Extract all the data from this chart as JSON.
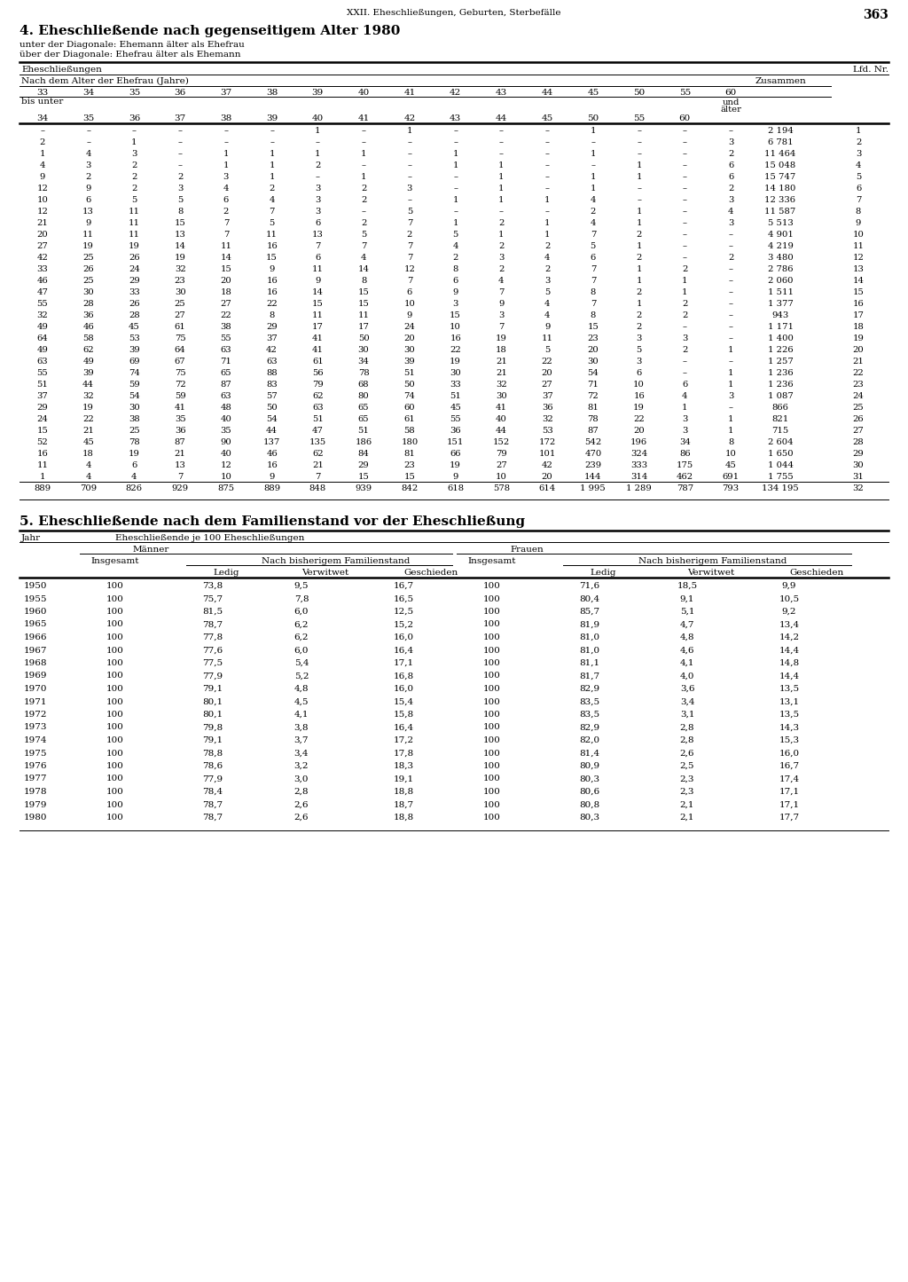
{
  "page_header": "XXII. Eheschließungen, Geburten, Sterbefälle",
  "page_number": "363",
  "section4_title": "4. Eheschließende nach gegenseitigem Alter 1980",
  "section4_sub1": "unter der Diagonale: Ehemann älter als Ehefrau",
  "section4_sub2": "über der Diagonale: Ehefrau älter als Ehemann",
  "table1_col_header1": "Eheschließungen",
  "table1_col_header_right": "Lfd. Nr.",
  "table1_sub_header1": "Nach dem Alter der Ehefrau (Jahre)",
  "table1_sub_header_right": "Zusammen",
  "table1_age_cols_top": [
    "33",
    "34",
    "35",
    "36",
    "37",
    "38",
    "39",
    "40",
    "41",
    "42",
    "43",
    "44",
    "45",
    "50",
    "55",
    "60"
  ],
  "table1_bis_unter": "bis unter",
  "table1_age_cols_bot": [
    "34",
    "35",
    "36",
    "37",
    "38",
    "39",
    "40",
    "41",
    "42",
    "43",
    "44",
    "45",
    "50",
    "55",
    "60"
  ],
  "table1_data": [
    [
      "–",
      "–",
      "–",
      "–",
      "–",
      "–",
      "1",
      "–",
      "1",
      "–",
      "–",
      "–",
      "1",
      "–",
      "–",
      "–",
      "2 194",
      "1"
    ],
    [
      "2",
      "–",
      "1",
      "–",
      "–",
      "–",
      "–",
      "–",
      "–",
      "–",
      "–",
      "–",
      "–",
      "–",
      "–",
      "3",
      "6 781",
      "2"
    ],
    [
      "1",
      "4",
      "3",
      "–",
      "1",
      "1",
      "1",
      "1",
      "–",
      "1",
      "–",
      "–",
      "1",
      "–",
      "–",
      "2",
      "11 464",
      "3"
    ],
    [
      "4",
      "3",
      "2",
      "–",
      "1",
      "1",
      "2",
      "–",
      "–",
      "1",
      "1",
      "–",
      "–",
      "1",
      "–",
      "6",
      "15 048",
      "4"
    ],
    [
      "9",
      "2",
      "2",
      "2",
      "3",
      "1",
      "–",
      "1",
      "–",
      "–",
      "1",
      "–",
      "1",
      "1",
      "–",
      "6",
      "15 747",
      "5"
    ],
    [
      "12",
      "9",
      "2",
      "3",
      "4",
      "2",
      "3",
      "2",
      "3",
      "–",
      "1",
      "–",
      "1",
      "–",
      "–",
      "2",
      "14 180",
      "6"
    ],
    [
      "10",
      "6",
      "5",
      "5",
      "6",
      "4",
      "3",
      "2",
      "–",
      "1",
      "1",
      "1",
      "4",
      "–",
      "–",
      "3",
      "12 336",
      "7"
    ],
    [
      "12",
      "13",
      "11",
      "8",
      "2",
      "7",
      "3",
      "–",
      "5",
      "–",
      "–",
      "–",
      "2",
      "1",
      "–",
      "4",
      "11 587",
      "8"
    ],
    [
      "21",
      "9",
      "11",
      "15",
      "7",
      "5",
      "6",
      "2",
      "7",
      "1",
      "2",
      "1",
      "4",
      "1",
      "–",
      "3",
      "5 513",
      "9"
    ],
    [
      "20",
      "11",
      "11",
      "13",
      "7",
      "11",
      "13",
      "5",
      "2",
      "5",
      "1",
      "1",
      "7",
      "2",
      "–",
      "–",
      "4 901",
      "10"
    ],
    [
      "27",
      "19",
      "19",
      "14",
      "11",
      "16",
      "7",
      "7",
      "7",
      "4",
      "2",
      "2",
      "5",
      "1",
      "–",
      "–",
      "4 219",
      "11"
    ],
    [
      "42",
      "25",
      "26",
      "19",
      "14",
      "15",
      "6",
      "4",
      "7",
      "2",
      "3",
      "4",
      "6",
      "2",
      "–",
      "2",
      "3 480",
      "12"
    ],
    [
      "33",
      "26",
      "24",
      "32",
      "15",
      "9",
      "11",
      "14",
      "12",
      "8",
      "2",
      "2",
      "7",
      "1",
      "2",
      "–",
      "2 786",
      "13"
    ],
    [
      "46",
      "25",
      "29",
      "23",
      "20",
      "16",
      "9",
      "8",
      "7",
      "6",
      "4",
      "3",
      "7",
      "1",
      "1",
      "–",
      "2 060",
      "14"
    ],
    [
      "47",
      "30",
      "33",
      "30",
      "18",
      "16",
      "14",
      "15",
      "6",
      "9",
      "7",
      "5",
      "8",
      "2",
      "1",
      "–",
      "1 511",
      "15"
    ],
    [
      "55",
      "28",
      "26",
      "25",
      "27",
      "22",
      "15",
      "15",
      "10",
      "3",
      "9",
      "4",
      "7",
      "1",
      "2",
      "–",
      "1 377",
      "16"
    ],
    [
      "32",
      "36",
      "28",
      "27",
      "22",
      "8",
      "11",
      "11",
      "9",
      "15",
      "3",
      "4",
      "8",
      "2",
      "2",
      "–",
      "943",
      "17"
    ],
    [
      "49",
      "46",
      "45",
      "61",
      "38",
      "29",
      "17",
      "17",
      "24",
      "10",
      "7",
      "9",
      "15",
      "2",
      "–",
      "–",
      "1 171",
      "18"
    ],
    [
      "64",
      "58",
      "53",
      "75",
      "55",
      "37",
      "41",
      "50",
      "20",
      "16",
      "19",
      "11",
      "23",
      "3",
      "3",
      "–",
      "1 400",
      "19"
    ],
    [
      "49",
      "62",
      "39",
      "64",
      "63",
      "42",
      "41",
      "30",
      "30",
      "22",
      "18",
      "5",
      "20",
      "5",
      "2",
      "1",
      "1 226",
      "20"
    ],
    [
      "63",
      "49",
      "69",
      "67",
      "71",
      "63",
      "61",
      "34",
      "39",
      "19",
      "21",
      "22",
      "30",
      "3",
      "–",
      "–",
      "1 257",
      "21"
    ],
    [
      "55",
      "39",
      "74",
      "75",
      "65",
      "88",
      "56",
      "78",
      "51",
      "30",
      "21",
      "20",
      "54",
      "6",
      "–",
      "1",
      "1 236",
      "22"
    ],
    [
      "51",
      "44",
      "59",
      "72",
      "87",
      "83",
      "79",
      "68",
      "50",
      "33",
      "32",
      "27",
      "71",
      "10",
      "6",
      "1",
      "1 236",
      "23"
    ],
    [
      "37",
      "32",
      "54",
      "59",
      "63",
      "57",
      "62",
      "80",
      "74",
      "51",
      "30",
      "37",
      "72",
      "16",
      "4",
      "3",
      "1 087",
      "24"
    ],
    [
      "29",
      "19",
      "30",
      "41",
      "48",
      "50",
      "63",
      "65",
      "60",
      "45",
      "41",
      "36",
      "81",
      "19",
      "1",
      "–",
      "866",
      "25"
    ],
    [
      "24",
      "22",
      "38",
      "35",
      "40",
      "54",
      "51",
      "65",
      "61",
      "55",
      "40",
      "32",
      "78",
      "22",
      "3",
      "1",
      "821",
      "26"
    ],
    [
      "15",
      "21",
      "25",
      "36",
      "35",
      "44",
      "47",
      "51",
      "58",
      "36",
      "44",
      "53",
      "87",
      "20",
      "3",
      "1",
      "715",
      "27"
    ],
    [
      "52",
      "45",
      "78",
      "87",
      "90",
      "137",
      "135",
      "186",
      "180",
      "151",
      "152",
      "172",
      "542",
      "196",
      "34",
      "8",
      "2 604",
      "28"
    ],
    [
      "16",
      "18",
      "19",
      "21",
      "40",
      "46",
      "62",
      "84",
      "81",
      "66",
      "79",
      "101",
      "470",
      "324",
      "86",
      "10",
      "1 650",
      "29"
    ],
    [
      "11",
      "4",
      "6",
      "13",
      "12",
      "16",
      "21",
      "29",
      "23",
      "19",
      "27",
      "42",
      "239",
      "333",
      "175",
      "45",
      "1 044",
      "30"
    ],
    [
      "1",
      "4",
      "4",
      "7",
      "10",
      "9",
      "7",
      "15",
      "15",
      "9",
      "10",
      "20",
      "144",
      "314",
      "462",
      "691",
      "1 755",
      "31"
    ],
    [
      "889",
      "709",
      "826",
      "929",
      "875",
      "889",
      "848",
      "939",
      "842",
      "618",
      "578",
      "614",
      "1 995",
      "1 289",
      "787",
      "793",
      "134 195",
      "32"
    ]
  ],
  "section5_title": "5. Eheschließende nach dem Familienstand vor der Eheschließung",
  "table2_col_jahr": "Jahr",
  "table2_col_header": "Eheschließende je 100 Eheschließungen",
  "table2_maenner": "Männer",
  "table2_frauen": "Frauen",
  "table2_insgesamt": "Insgesamt",
  "table2_nach_fam": "Nach bisherigem Familienstand",
  "table2_ledig": "Ledig",
  "table2_verwitwet": "Verwitwet",
  "table2_geschieden": "Geschieden",
  "table2_data": [
    [
      "1950",
      "100",
      "73,8",
      "9,5",
      "16,7",
      "100",
      "71,6",
      "18,5",
      "9,9"
    ],
    [
      "1955",
      "100",
      "75,7",
      "7,8",
      "16,5",
      "100",
      "80,4",
      "9,1",
      "10,5"
    ],
    [
      "1960",
      "100",
      "81,5",
      "6,0",
      "12,5",
      "100",
      "85,7",
      "5,1",
      "9,2"
    ],
    [
      "1965",
      "100",
      "78,7",
      "6,2",
      "15,2",
      "100",
      "81,9",
      "4,7",
      "13,4"
    ],
    [
      "1966",
      "100",
      "77,8",
      "6,2",
      "16,0",
      "100",
      "81,0",
      "4,8",
      "14,2"
    ],
    [
      "1967",
      "100",
      "77,6",
      "6,0",
      "16,4",
      "100",
      "81,0",
      "4,6",
      "14,4"
    ],
    [
      "1968",
      "100",
      "77,5",
      "5,4",
      "17,1",
      "100",
      "81,1",
      "4,1",
      "14,8"
    ],
    [
      "1969",
      "100",
      "77,9",
      "5,2",
      "16,8",
      "100",
      "81,7",
      "4,0",
      "14,4"
    ],
    [
      "1970",
      "100",
      "79,1",
      "4,8",
      "16,0",
      "100",
      "82,9",
      "3,6",
      "13,5"
    ],
    [
      "1971",
      "100",
      "80,1",
      "4,5",
      "15,4",
      "100",
      "83,5",
      "3,4",
      "13,1"
    ],
    [
      "1972",
      "100",
      "80,1",
      "4,1",
      "15,8",
      "100",
      "83,5",
      "3,1",
      "13,5"
    ],
    [
      "1973",
      "100",
      "79,8",
      "3,8",
      "16,4",
      "100",
      "82,9",
      "2,8",
      "14,3"
    ],
    [
      "1974",
      "100",
      "79,1",
      "3,7",
      "17,2",
      "100",
      "82,0",
      "2,8",
      "15,3"
    ],
    [
      "1975",
      "100",
      "78,8",
      "3,4",
      "17,8",
      "100",
      "81,4",
      "2,6",
      "16,0"
    ],
    [
      "1976",
      "100",
      "78,6",
      "3,2",
      "18,3",
      "100",
      "80,9",
      "2,5",
      "16,7"
    ],
    [
      "1977",
      "100",
      "77,9",
      "3,0",
      "19,1",
      "100",
      "80,3",
      "2,3",
      "17,4"
    ],
    [
      "1978",
      "100",
      "78,4",
      "2,8",
      "18,8",
      "100",
      "80,6",
      "2,3",
      "17,1"
    ],
    [
      "1979",
      "100",
      "78,7",
      "2,6",
      "18,7",
      "100",
      "80,8",
      "2,1",
      "17,1"
    ],
    [
      "1980",
      "100",
      "78,7",
      "2,6",
      "18,8",
      "100",
      "80,3",
      "2,1",
      "17,7"
    ]
  ]
}
